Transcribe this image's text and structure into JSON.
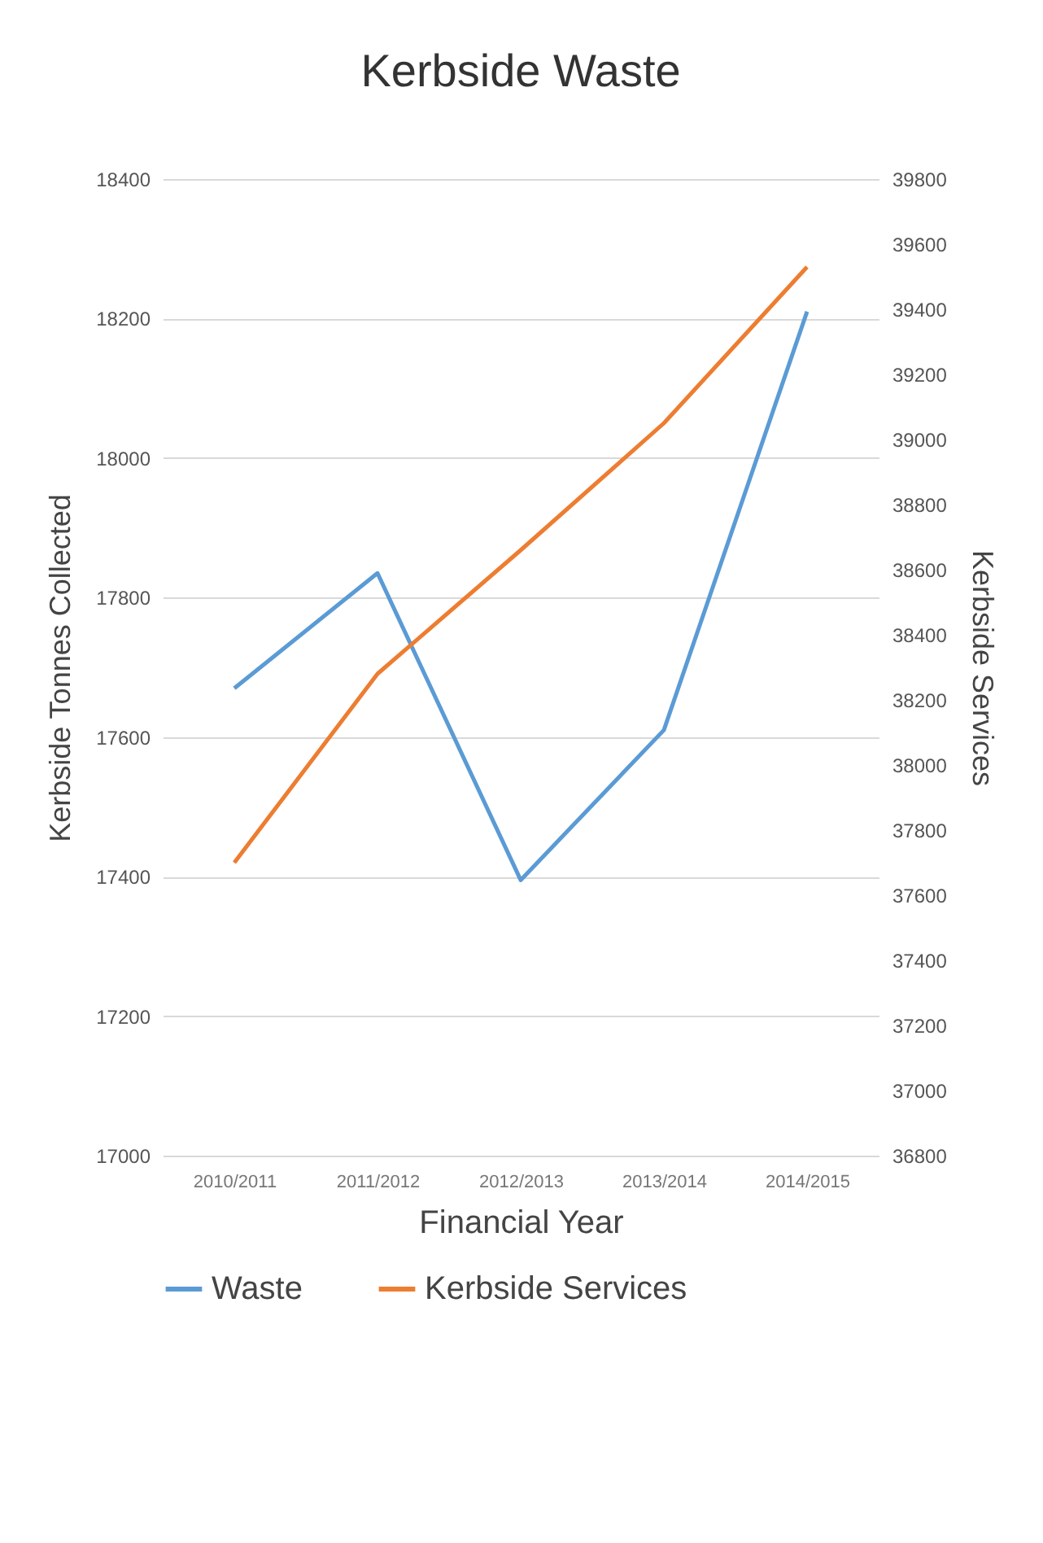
{
  "chart_data": {
    "type": "line",
    "title": "Kerbside Waste",
    "xlabel": "Financial Year",
    "ylabel": "Kerbside Tonnes Collected",
    "y2label": "Kerbside Services",
    "categories": [
      "2010/2011",
      "2011/2012",
      "2012/2013",
      "2013/2014",
      "2014/2015"
    ],
    "series": [
      {
        "name": "Waste",
        "color": "#5b9bd5",
        "values": [
          17670,
          17835,
          17395,
          17610,
          18210
        ]
      },
      {
        "name": "Kerbside Services",
        "color": "#ed7d31",
        "axis": "y2",
        "values": [
          37700,
          38280,
          38660,
          39050,
          39530
        ]
      }
    ],
    "ylim": [
      17000,
      18400
    ],
    "yticks": [
      17000,
      17200,
      17400,
      17600,
      17800,
      18000,
      18200,
      18400
    ],
    "y2lim": [
      36800,
      39800
    ],
    "y2ticks": [
      36800,
      37000,
      37200,
      37400,
      37600,
      37800,
      38000,
      38200,
      38400,
      38600,
      38800,
      39000,
      39200,
      39400,
      39600,
      39800
    ],
    "grid": "y",
    "legend": "bottom",
    "marker": "none"
  }
}
